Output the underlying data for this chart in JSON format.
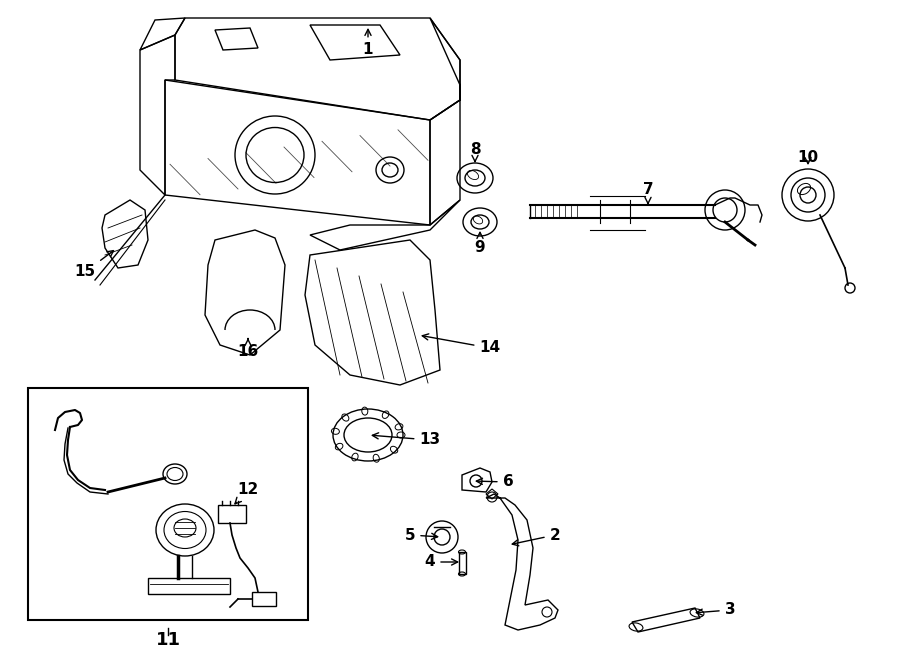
{
  "bg_color": "#ffffff",
  "line_color": "#000000",
  "figsize": [
    9.0,
    6.61
  ],
  "dpi": 100,
  "label_fontsize": 11
}
